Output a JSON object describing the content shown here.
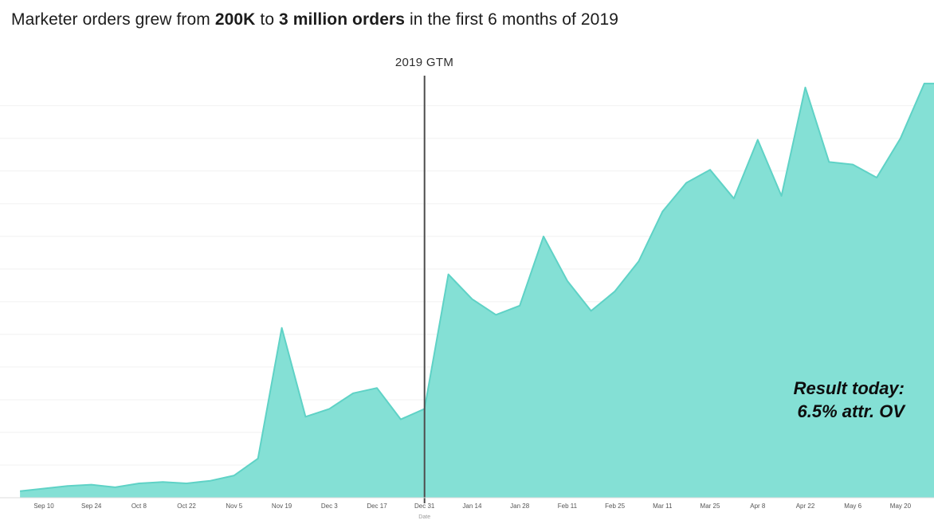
{
  "title": {
    "part1": "Marketer orders grew from ",
    "part2": "200K",
    "part3": " to ",
    "part4": "3 million orders",
    "part5": " in the first 6 months of 2019"
  },
  "annotation": {
    "line1": "Result today:",
    "line2": "6.5% attr. OV"
  },
  "chart_data": {
    "type": "area",
    "title": "Marketer orders grew from 200K to 3 million orders in the first 6 months of 2019",
    "xlabel": "Date",
    "ylabel": "",
    "unit": "orders (millions, estimated from chart height)",
    "x": [
      "Sep 3",
      "Sep 10",
      "Sep 17",
      "Sep 24",
      "Oct 1",
      "Oct 8",
      "Oct 15",
      "Oct 22",
      "Oct 29",
      "Nov 5",
      "Nov 12",
      "Nov 19",
      "Nov 26",
      "Dec 3",
      "Dec 10",
      "Dec 17",
      "Dec 24",
      "Dec 31",
      "Jan 7",
      "Jan 14",
      "Jan 21",
      "Jan 28",
      "Feb 4",
      "Feb 11",
      "Feb 18",
      "Feb 25",
      "Mar 4",
      "Mar 11",
      "Mar 18",
      "Mar 25",
      "Apr 1",
      "Apr 8",
      "Apr 15",
      "Apr 22",
      "Apr 29",
      "May 6",
      "May 13",
      "May 20",
      "May 27"
    ],
    "values": [
      0.05,
      0.07,
      0.09,
      0.1,
      0.08,
      0.11,
      0.12,
      0.11,
      0.13,
      0.17,
      0.3,
      1.3,
      0.62,
      0.68,
      0.8,
      0.84,
      0.6,
      0.68,
      1.71,
      1.52,
      1.4,
      1.47,
      2.0,
      1.66,
      1.43,
      1.58,
      1.81,
      2.19,
      2.41,
      2.51,
      2.29,
      2.74,
      2.31,
      3.14,
      2.57,
      2.55,
      2.45,
      2.75,
      3.17
    ],
    "x_ticks": [
      "Sep 10",
      "Sep 24",
      "Oct 8",
      "Oct 22",
      "Nov 5",
      "Nov 19",
      "Dec 3",
      "Dec 17",
      "Dec 31",
      "Jan 14",
      "Jan 28",
      "Feb 11",
      "Feb 25",
      "Mar 11",
      "Mar 25",
      "Apr 8",
      "Apr 22",
      "May 6",
      "May 20"
    ],
    "ylim": [
      0,
      3.2
    ],
    "grid": "horizontal",
    "legend": "none",
    "marker": {
      "x": "Dec 31",
      "label": "2019 GTM"
    },
    "colors": {
      "fill": "#84e0d5",
      "stroke": "#5fd2c6",
      "marker_line": "#4d4d4d",
      "grid": "#f1f1f1",
      "axis": "#dddddd",
      "tick_text": "#555555"
    }
  }
}
